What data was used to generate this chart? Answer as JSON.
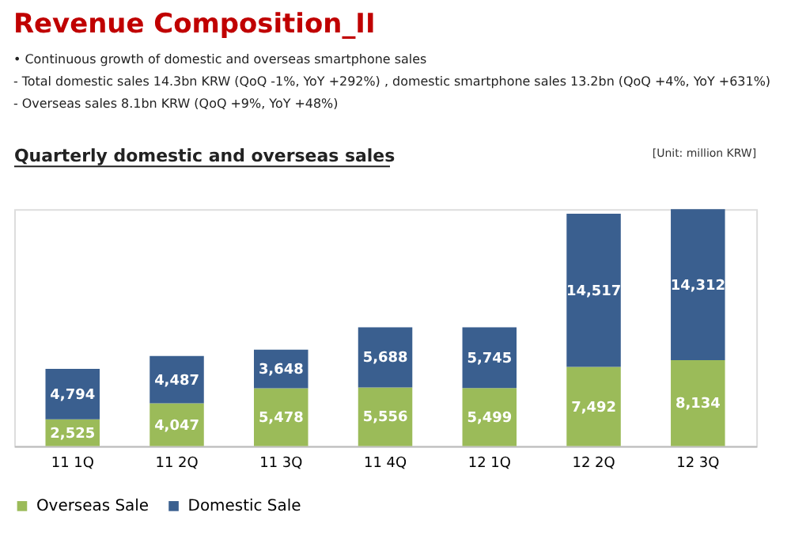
{
  "chart_data": {
    "type": "bar",
    "title": "Revenue Composition_II",
    "subtitle": "Quarterly domestic and overseas sales",
    "annotations": [
      "•  Continuous growth of domestic and overseas smartphone sales",
      "- Total domestic sales 14.3bn KRW (QoQ -1%, YoY +292%) , domestic smartphone sales 13.2bn (QoQ +4%, YoY +631%)",
      "- Overseas sales 8.1bn KRW (QoQ +9%, YoY +48%)",
      "[Unit: million KRW]"
    ],
    "categories": [
      "11 1Q",
      "11 2Q",
      "11 3Q",
      "11 4Q",
      "12 1Q",
      "12 2Q",
      "12 3Q"
    ],
    "stacked": true,
    "legend": "bottom",
    "grid": false,
    "series": [
      {
        "name": "Overseas Sale",
        "color": "#9bbb59",
        "values": [
          2525,
          4047,
          5478,
          5556,
          5499,
          7492,
          8134
        ],
        "value_labels": [
          "2,525",
          "4,047",
          "5,478",
          "5,556",
          "5,499",
          "7,492",
          "8,134"
        ]
      },
      {
        "name": "Domestic Sale",
        "color": "#3a5f8f",
        "values": [
          4794,
          4487,
          3648,
          5688,
          5745,
          14517,
          14312
        ],
        "value_labels": [
          "4,794",
          "4,487",
          "3,648",
          "5,688",
          "5,745",
          "14,517",
          "14,312"
        ]
      }
    ]
  }
}
